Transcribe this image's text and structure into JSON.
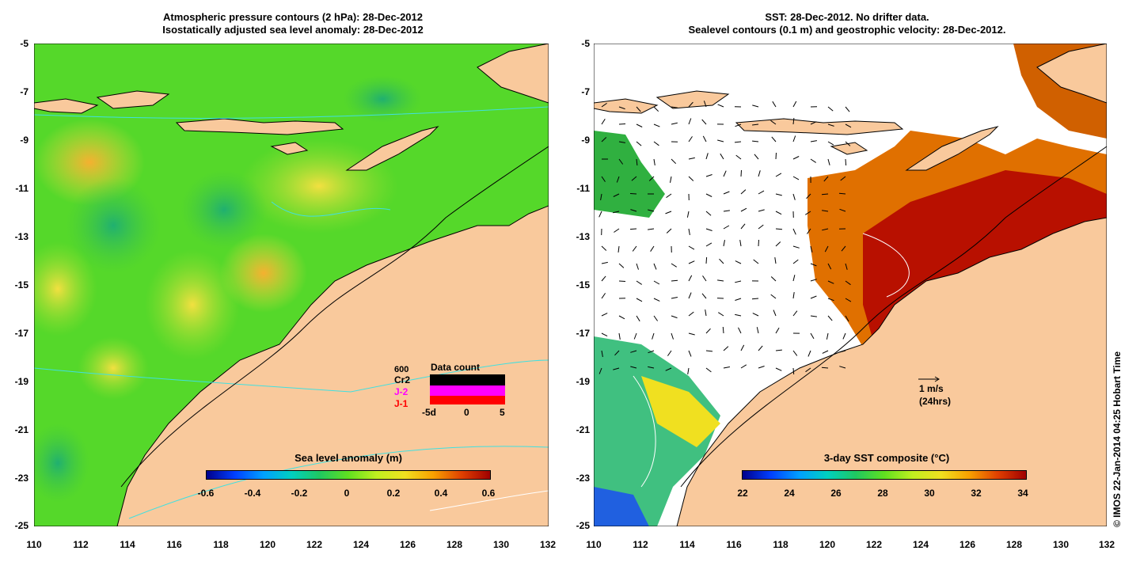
{
  "left_panel": {
    "title_line1": "Atmospheric pressure contours (2 hPa): 28-Dec-2012",
    "title_line2": "Isostatically adjusted sea level anomaly: 28-Dec-2012",
    "y_ticks": [
      "-5",
      "-7",
      "-9",
      "-11",
      "-13",
      "-15",
      "-17",
      "-19",
      "-21",
      "-23",
      "-25"
    ],
    "x_ticks": [
      "110",
      "112",
      "114",
      "116",
      "118",
      "120",
      "122",
      "124",
      "126",
      "128",
      "130",
      "132"
    ],
    "colorbar_title": "Sea level anomaly (m)",
    "colorbar_ticks": [
      "-0.6",
      "-0.4",
      "-0.2",
      "0",
      "0.2",
      "0.4",
      "0.6"
    ],
    "data_count": {
      "title": "Data count",
      "max_label": "600",
      "labels": [
        "Cr2",
        "J-2",
        "J-1"
      ],
      "axis_labels": [
        "-5d",
        "0",
        "5"
      ],
      "colors": {
        "Cr2": "#000000",
        "J-2": "#ff00ff",
        "J-1": "#ff0000"
      }
    }
  },
  "right_panel": {
    "title_line1": "SST: 28-Dec-2012. No drifter data.",
    "title_line2": "Sealevel contours (0.1 m) and geostrophic velocity: 28-Dec-2012.",
    "y_ticks": [
      "-5",
      "-7",
      "-9",
      "-11",
      "-13",
      "-15",
      "-17",
      "-19",
      "-21",
      "-23",
      "-25"
    ],
    "x_ticks": [
      "110",
      "112",
      "114",
      "116",
      "118",
      "120",
      "122",
      "124",
      "126",
      "128",
      "130",
      "132"
    ],
    "colorbar_title": "3-day SST composite (°C)",
    "colorbar_ticks": [
      "22",
      "24",
      "26",
      "28",
      "30",
      "32",
      "34"
    ],
    "velocity_scale": {
      "label1": "1 m/s",
      "label2": "(24hrs)"
    }
  },
  "credit": "© IMOS 22-Jan-2014 04:25 Hobart Time",
  "colors": {
    "land": "#f9c99c",
    "ocean_green": "#55dd22",
    "sst_orange": "#e08000",
    "sst_red": "#b81000"
  }
}
